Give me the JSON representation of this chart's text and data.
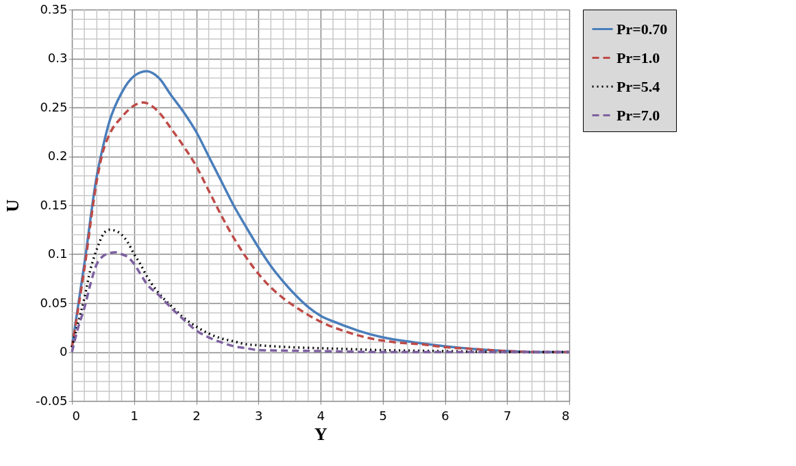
{
  "chart_data": {
    "type": "line",
    "xlabel": "Y",
    "ylabel": "U",
    "xlim": [
      0,
      8
    ],
    "ylim": [
      -0.05,
      0.35
    ],
    "xticks": [
      0,
      1,
      2,
      3,
      4,
      5,
      6,
      7,
      8
    ],
    "yticks": [
      -0.05,
      0,
      0.05,
      0.1,
      0.15,
      0.2,
      0.25,
      0.3,
      0.35
    ],
    "grid": true,
    "legend": "top right",
    "marker": "none",
    "series": [
      {
        "name": "Pr=0.70",
        "color": "#4a7ebb",
        "line_style": "solid",
        "x": [
          0,
          0.2,
          0.4,
          0.5,
          0.6,
          0.8,
          1.0,
          1.2,
          1.4,
          1.6,
          1.8,
          2.0,
          2.2,
          2.4,
          2.6,
          2.8,
          3.0,
          3.2,
          3.4,
          3.6,
          3.8,
          4.0,
          4.3,
          4.6,
          5.0,
          5.5,
          6.0,
          6.5,
          7.0,
          7.5,
          8.0
        ],
        "values": [
          0.005,
          0.09,
          0.18,
          0.21,
          0.235,
          0.265,
          0.282,
          0.287,
          0.28,
          0.262,
          0.245,
          0.225,
          0.2,
          0.175,
          0.15,
          0.128,
          0.107,
          0.088,
          0.072,
          0.058,
          0.046,
          0.037,
          0.029,
          0.022,
          0.015,
          0.01,
          0.006,
          0.003,
          0.001,
          0,
          0
        ]
      },
      {
        "name": "Pr=1.0",
        "color": "#be4b48",
        "line_style": "dashed",
        "x": [
          0,
          0.2,
          0.4,
          0.5,
          0.6,
          0.8,
          1.0,
          1.15,
          1.4,
          1.6,
          1.8,
          2.0,
          2.2,
          2.4,
          2.6,
          2.8,
          3.0,
          3.2,
          3.4,
          3.6,
          3.8,
          4.0,
          4.4,
          4.8,
          5.2,
          5.6,
          6.0,
          6.5,
          7.0,
          7.6,
          8.0
        ],
        "values": [
          0.005,
          0.085,
          0.175,
          0.205,
          0.222,
          0.24,
          0.252,
          0.255,
          0.245,
          0.228,
          0.21,
          0.19,
          0.165,
          0.14,
          0.117,
          0.097,
          0.08,
          0.066,
          0.055,
          0.046,
          0.038,
          0.031,
          0.021,
          0.014,
          0.01,
          0.008,
          0.005,
          0.003,
          0.001,
          0,
          0
        ]
      },
      {
        "name": "Pr=5.4",
        "color": "#000000",
        "line_style": "dotted",
        "x": [
          0,
          0.1,
          0.2,
          0.3,
          0.4,
          0.5,
          0.6,
          0.7,
          0.8,
          0.9,
          1.0,
          1.1,
          1.2,
          1.4,
          1.6,
          1.8,
          2.0,
          2.2,
          2.4,
          2.6,
          2.8,
          3.0,
          3.5,
          4.0,
          5.0,
          6.0,
          7.0,
          8.0
        ],
        "values": [
          0.005,
          0.03,
          0.055,
          0.085,
          0.105,
          0.12,
          0.125,
          0.124,
          0.12,
          0.112,
          0.1,
          0.09,
          0.078,
          0.06,
          0.047,
          0.035,
          0.026,
          0.019,
          0.014,
          0.011,
          0.008,
          0.007,
          0.005,
          0.004,
          0.002,
          0.001,
          0,
          0
        ]
      },
      {
        "name": "Pr=7.0",
        "color": "#7d60a0",
        "line_style": "dashed",
        "x": [
          0,
          0.1,
          0.2,
          0.3,
          0.4,
          0.5,
          0.6,
          0.7,
          0.8,
          0.9,
          1.0,
          1.1,
          1.2,
          1.4,
          1.6,
          1.8,
          2.0,
          2.2,
          2.4,
          2.6,
          2.8,
          3.0,
          4.0,
          5.0,
          8.0
        ],
        "values": [
          0,
          0.025,
          0.045,
          0.07,
          0.09,
          0.098,
          0.101,
          0.102,
          0.1,
          0.097,
          0.09,
          0.08,
          0.07,
          0.058,
          0.045,
          0.033,
          0.022,
          0.015,
          0.01,
          0.006,
          0.004,
          0.002,
          0.001,
          0,
          0
        ]
      }
    ]
  }
}
